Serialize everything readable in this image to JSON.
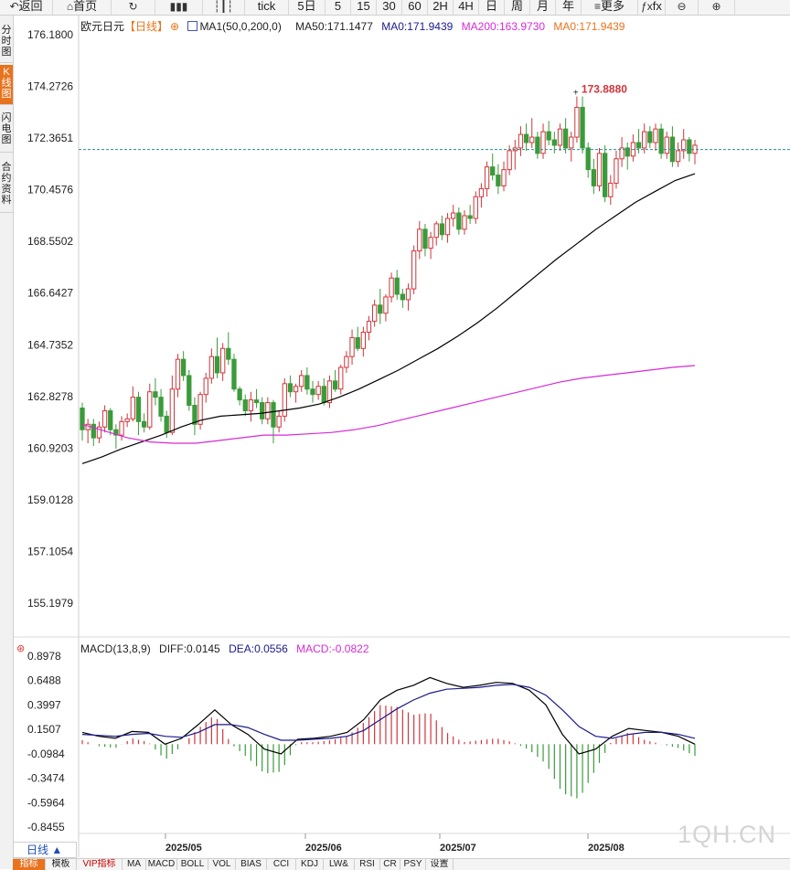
{
  "toolbar": {
    "items": [
      {
        "label": "返回",
        "icon": "back-arrow-icon"
      },
      {
        "label": "首页",
        "icon": "home-icon"
      },
      {
        "label": "",
        "icon": "refresh-icon"
      },
      {
        "label": "",
        "icon": "bar-chart-icon"
      },
      {
        "label": "",
        "icon": "candlestick-icon"
      },
      {
        "label": "tick",
        "icon": ""
      },
      {
        "label": "5日",
        "icon": ""
      },
      {
        "label": "5",
        "icon": ""
      },
      {
        "label": "15",
        "icon": ""
      },
      {
        "label": "30",
        "icon": ""
      },
      {
        "label": "60",
        "icon": ""
      },
      {
        "label": "2H",
        "icon": ""
      },
      {
        "label": "4H",
        "icon": ""
      },
      {
        "label": "日",
        "icon": ""
      },
      {
        "label": "周",
        "icon": ""
      },
      {
        "label": "月",
        "icon": ""
      },
      {
        "label": "年",
        "icon": ""
      },
      {
        "label": "更多",
        "icon": "menu-icon"
      },
      {
        "label": "fx",
        "icon": "formula-icon"
      },
      {
        "label": "",
        "icon": "zoom-out-icon"
      },
      {
        "label": "",
        "icon": "zoom-in-icon"
      }
    ]
  },
  "sidebar": {
    "tabs": [
      {
        "label": "分时图"
      },
      {
        "label": "K线图"
      },
      {
        "label": "闪电图"
      },
      {
        "label": "合约资料"
      }
    ]
  },
  "legend": {
    "symbol": "欧元日元",
    "period": "【日线】",
    "ma_title": "MA1(50,0,200,0)",
    "ma50": "MA50:171.1477",
    "ma0": "MA0:171.9439",
    "ma200": "MA200:163.9730",
    "ma0b": "MA0:171.9439"
  },
  "macd_legend": {
    "title": "MACD(13,8,9)",
    "diff": "DIFF:0.0145",
    "dea": "DEA:0.0556",
    "macd": "MACD:-0.0822"
  },
  "price_axis": [
    "176.1800",
    "174.2726",
    "172.3651",
    "170.4576",
    "168.5502",
    "166.6427",
    "164.7352",
    "162.8278",
    "160.9203",
    "159.0128",
    "157.1054",
    "155.1979"
  ],
  "macd_axis": [
    "0.8978",
    "0.6488",
    "0.3997",
    "0.1507",
    "-0.0984",
    "-0.3474",
    "-0.5964",
    "-0.8455"
  ],
  "date_axis": [
    "2025/05",
    "2025/06",
    "2025/07",
    "2025/08"
  ],
  "high_label": "173.8880",
  "current_price": 171.9439,
  "watermark": "1QH.CN",
  "period_selector": "日线 ▲",
  "bottom_tabs": [
    {
      "label": "指标"
    },
    {
      "label": "模板"
    },
    {
      "label": "VIP指标"
    },
    {
      "label": "MA"
    },
    {
      "label": "MACD"
    },
    {
      "label": "BOLL"
    },
    {
      "label": "VOL"
    },
    {
      "label": "BIAS"
    },
    {
      "label": "CCI"
    },
    {
      "label": "KDJ"
    },
    {
      "label": "LW&"
    },
    {
      "label": "RSI"
    },
    {
      "label": "CR"
    },
    {
      "label": "PSY"
    },
    {
      "label": "设置"
    }
  ],
  "colors": {
    "up": "#d0353b",
    "down": "#3a9b3a",
    "ma50": "#000000",
    "ma200": "#d62ad6",
    "ma0": "#e8731e",
    "dea": "#1a1a8c",
    "accent": "#e8731e"
  },
  "chart_data": {
    "type": "candlestick",
    "title": "欧元日元",
    "ylim": [
      155.1979,
      176.18
    ],
    "macd_ylim": [
      -0.8455,
      0.8978
    ],
    "series_order": "open,high,low,close (approx, read from chart)",
    "candles": [
      [
        162.4,
        162.6,
        161.2,
        161.6
      ],
      [
        161.6,
        162.0,
        161.1,
        161.8
      ],
      [
        161.8,
        162.0,
        161.0,
        161.3
      ],
      [
        161.3,
        161.9,
        161.1,
        161.7
      ],
      [
        161.7,
        162.5,
        161.5,
        162.3
      ],
      [
        162.3,
        162.4,
        161.4,
        161.6
      ],
      [
        161.6,
        161.8,
        160.9,
        161.4
      ],
      [
        161.4,
        162.1,
        161.2,
        161.9
      ],
      [
        161.9,
        162.2,
        161.7,
        162.0
      ],
      [
        162.0,
        163.2,
        161.9,
        162.8
      ],
      [
        162.8,
        163.0,
        161.4,
        161.9
      ],
      [
        161.9,
        162.2,
        161.5,
        161.7
      ],
      [
        161.7,
        163.3,
        161.6,
        163.0
      ],
      [
        163.0,
        163.5,
        162.5,
        162.8
      ],
      [
        162.8,
        163.1,
        161.9,
        162.1
      ],
      [
        162.1,
        162.3,
        161.3,
        161.5
      ],
      [
        161.5,
        163.6,
        161.4,
        163.1
      ],
      [
        163.1,
        164.4,
        162.8,
        164.2
      ],
      [
        164.2,
        164.5,
        163.4,
        163.6
      ],
      [
        163.6,
        163.8,
        162.3,
        162.5
      ],
      [
        162.5,
        162.8,
        161.4,
        161.8
      ],
      [
        161.8,
        163.0,
        161.6,
        162.9
      ],
      [
        162.9,
        163.7,
        162.6,
        163.5
      ],
      [
        163.5,
        164.6,
        163.3,
        164.3
      ],
      [
        164.3,
        165.0,
        163.5,
        163.7
      ],
      [
        163.7,
        164.8,
        163.4,
        164.6
      ],
      [
        164.6,
        165.2,
        164.0,
        164.2
      ],
      [
        164.2,
        164.4,
        163.0,
        163.1
      ],
      [
        163.1,
        163.2,
        162.5,
        162.7
      ],
      [
        162.7,
        162.9,
        162.1,
        162.3
      ],
      [
        162.3,
        163.0,
        161.9,
        162.7
      ],
      [
        162.7,
        163.1,
        162.4,
        162.6
      ],
      [
        162.6,
        162.8,
        161.8,
        162.0
      ],
      [
        162.0,
        162.8,
        161.8,
        162.6
      ],
      [
        162.6,
        162.7,
        161.1,
        161.7
      ],
      [
        161.7,
        162.3,
        161.5,
        162.1
      ],
      [
        162.1,
        163.5,
        161.9,
        163.3
      ],
      [
        163.3,
        163.6,
        162.8,
        163.0
      ],
      [
        163.0,
        163.3,
        162.6,
        163.2
      ],
      [
        163.2,
        163.8,
        163.0,
        163.6
      ],
      [
        163.6,
        163.9,
        162.9,
        163.1
      ],
      [
        163.1,
        163.4,
        162.6,
        162.9
      ],
      [
        162.9,
        163.4,
        162.7,
        163.2
      ],
      [
        163.2,
        163.5,
        162.5,
        162.6
      ],
      [
        162.6,
        163.6,
        162.4,
        163.4
      ],
      [
        163.4,
        163.8,
        163.0,
        163.1
      ],
      [
        163.1,
        164.0,
        162.9,
        163.9
      ],
      [
        163.9,
        164.5,
        163.7,
        164.3
      ],
      [
        164.3,
        165.3,
        164.0,
        165.0
      ],
      [
        165.0,
        165.4,
        164.5,
        164.6
      ],
      [
        164.6,
        165.4,
        164.3,
        165.2
      ],
      [
        165.2,
        165.8,
        164.9,
        165.6
      ],
      [
        165.6,
        166.4,
        165.4,
        166.2
      ],
      [
        166.2,
        166.8,
        165.5,
        165.9
      ],
      [
        165.9,
        166.6,
        165.6,
        166.5
      ],
      [
        166.5,
        167.4,
        166.3,
        167.2
      ],
      [
        167.2,
        167.5,
        166.4,
        166.6
      ],
      [
        166.6,
        166.8,
        166.1,
        166.4
      ],
      [
        166.4,
        167.0,
        166.0,
        166.8
      ],
      [
        166.8,
        168.4,
        166.6,
        168.2
      ],
      [
        168.2,
        169.3,
        167.9,
        169.0
      ],
      [
        169.0,
        169.2,
        168.0,
        168.3
      ],
      [
        168.3,
        168.9,
        167.9,
        168.7
      ],
      [
        168.7,
        169.3,
        168.4,
        169.2
      ],
      [
        169.2,
        169.5,
        168.6,
        168.8
      ],
      [
        168.8,
        169.6,
        168.5,
        169.4
      ],
      [
        169.4,
        169.9,
        169.1,
        169.6
      ],
      [
        169.6,
        169.8,
        168.8,
        169.0
      ],
      [
        169.0,
        169.7,
        168.8,
        169.5
      ],
      [
        169.5,
        169.9,
        169.2,
        169.4
      ],
      [
        169.4,
        170.4,
        169.2,
        170.2
      ],
      [
        170.2,
        170.7,
        169.8,
        170.5
      ],
      [
        170.5,
        171.5,
        170.2,
        171.3
      ],
      [
        171.3,
        171.8,
        170.8,
        171.0
      ],
      [
        171.0,
        171.4,
        170.3,
        170.6
      ],
      [
        170.6,
        171.5,
        170.4,
        171.2
      ],
      [
        171.2,
        172.1,
        171.0,
        171.9
      ],
      [
        171.9,
        172.3,
        171.2,
        172.0
      ],
      [
        172.0,
        172.8,
        171.7,
        172.5
      ],
      [
        172.5,
        172.9,
        171.9,
        172.2
      ],
      [
        172.2,
        173.1,
        172.0,
        172.4
      ],
      [
        172.4,
        172.6,
        171.6,
        171.8
      ],
      [
        171.8,
        172.9,
        171.6,
        172.6
      ],
      [
        172.6,
        173.0,
        172.1,
        172.3
      ],
      [
        172.3,
        172.6,
        171.8,
        172.1
      ],
      [
        172.1,
        172.9,
        171.9,
        172.7
      ],
      [
        172.7,
        173.1,
        171.8,
        172.0
      ],
      [
        172.0,
        172.6,
        171.5,
        172.4
      ],
      [
        172.4,
        173.9,
        172.2,
        173.5
      ],
      [
        173.5,
        173.9,
        171.8,
        172.0
      ],
      [
        172.0,
        172.2,
        170.9,
        171.2
      ],
      [
        171.2,
        171.6,
        170.3,
        170.6
      ],
      [
        170.6,
        172.0,
        170.4,
        171.8
      ],
      [
        171.8,
        172.1,
        170.0,
        170.2
      ],
      [
        170.2,
        171.0,
        169.9,
        170.7
      ],
      [
        170.7,
        171.9,
        170.5,
        171.6
      ],
      [
        171.6,
        172.4,
        171.3,
        172.0
      ],
      [
        172.0,
        172.2,
        171.2,
        171.7
      ],
      [
        171.7,
        172.5,
        171.5,
        172.2
      ],
      [
        172.2,
        172.7,
        171.8,
        172.0
      ],
      [
        172.0,
        172.9,
        171.8,
        172.6
      ],
      [
        172.6,
        172.8,
        172.0,
        172.2
      ],
      [
        172.2,
        172.9,
        171.9,
        172.7
      ],
      [
        172.7,
        172.9,
        171.6,
        171.8
      ],
      [
        171.8,
        172.6,
        171.6,
        172.4
      ],
      [
        172.4,
        172.8,
        171.3,
        171.5
      ],
      [
        171.5,
        172.2,
        171.3,
        171.9
      ],
      [
        171.9,
        172.7,
        171.6,
        172.3
      ],
      [
        172.3,
        172.4,
        171.5,
        171.8
      ],
      [
        171.8,
        172.3,
        171.4,
        172.1
      ]
    ],
    "ma50": [
      160.35,
      160.6,
      160.9,
      161.15,
      161.4,
      161.7,
      161.95,
      162.1,
      162.15,
      162.2,
      162.3,
      162.4,
      162.55,
      162.8,
      163.1,
      163.45,
      163.8,
      164.2,
      164.6,
      165.05,
      165.55,
      166.1,
      166.7,
      167.3,
      167.9,
      168.45,
      169.0,
      169.5,
      170.0,
      170.4,
      170.8,
      171.05
    ],
    "ma200": [
      161.8,
      161.55,
      161.3,
      161.15,
      161.1,
      161.1,
      161.2,
      161.3,
      161.4,
      161.4,
      161.45,
      161.5,
      161.6,
      161.75,
      161.95,
      162.15,
      162.35,
      162.55,
      162.75,
      162.95,
      163.15,
      163.35,
      163.5,
      163.6,
      163.7,
      163.8,
      163.9,
      163.97
    ],
    "macd_diff": [
      0.12,
      0.08,
      0.06,
      0.13,
      0.12,
      0.0,
      0.06,
      0.2,
      0.35,
      0.2,
      0.1,
      -0.05,
      -0.1,
      0.05,
      0.06,
      0.08,
      0.12,
      0.25,
      0.45,
      0.55,
      0.6,
      0.68,
      0.62,
      0.58,
      0.6,
      0.63,
      0.62,
      0.55,
      0.4,
      0.1,
      -0.1,
      -0.05,
      0.08,
      0.16,
      0.14,
      0.12,
      0.08,
      0.0
    ],
    "macd_dea": [
      0.1,
      0.09,
      0.08,
      0.1,
      0.11,
      0.08,
      0.07,
      0.12,
      0.2,
      0.2,
      0.17,
      0.1,
      0.04,
      0.04,
      0.05,
      0.06,
      0.08,
      0.14,
      0.25,
      0.36,
      0.45,
      0.52,
      0.56,
      0.57,
      0.58,
      0.6,
      0.61,
      0.58,
      0.5,
      0.35,
      0.18,
      0.08,
      0.06,
      0.1,
      0.12,
      0.12,
      0.1,
      0.06
    ]
  }
}
